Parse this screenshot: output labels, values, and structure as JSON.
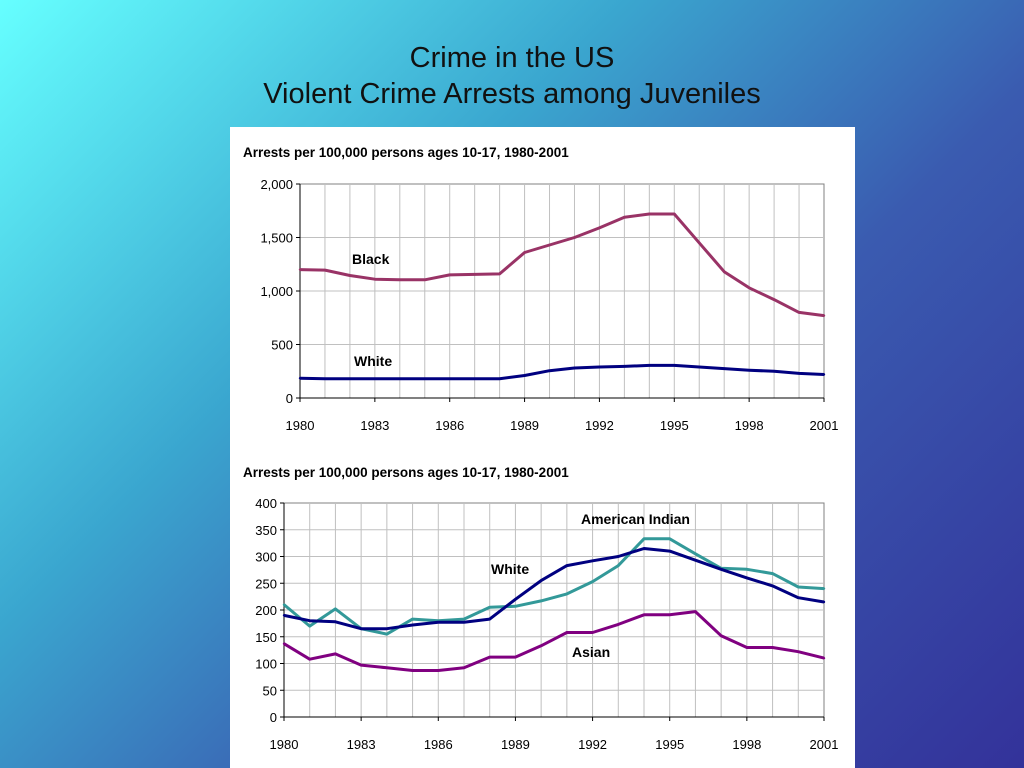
{
  "slide": {
    "title_line1": "Crime in the US",
    "title_line2": "Violent Crime Arrests among Juveniles"
  },
  "chart_data": [
    {
      "type": "line",
      "title": "Arrests per 100,000 persons ages 10-17, 1980-2001",
      "xlabel": "",
      "ylabel": "",
      "xlim": [
        1980,
        2001
      ],
      "ylim": [
        0,
        2000
      ],
      "x_ticks": [
        "1980",
        "1983",
        "1986",
        "1989",
        "1992",
        "1995",
        "1998",
        "2001"
      ],
      "y_ticks": [
        "2,000",
        "1,500",
        "1,000",
        "500",
        "0"
      ],
      "grid": true,
      "legend": "none (series labeled on chart)",
      "x": [
        1980,
        1981,
        1982,
        1983,
        1984,
        1985,
        1986,
        1987,
        1988,
        1989,
        1990,
        1991,
        1992,
        1993,
        1994,
        1995,
        1996,
        1997,
        1998,
        1999,
        2000,
        2001
      ],
      "series": [
        {
          "name": "Black",
          "color": "#993366",
          "values": [
            1200,
            1195,
            1145,
            1110,
            1105,
            1105,
            1150,
            1155,
            1160,
            1360,
            1430,
            1500,
            1590,
            1690,
            1720,
            1720,
            1450,
            1180,
            1030,
            920,
            800,
            770
          ]
        },
        {
          "name": "White",
          "color": "#000080",
          "values": [
            185,
            180,
            180,
            180,
            180,
            180,
            180,
            180,
            180,
            210,
            255,
            280,
            290,
            295,
            305,
            305,
            290,
            275,
            260,
            250,
            230,
            220
          ]
        }
      ]
    },
    {
      "type": "line",
      "title": "Arrests per 100,000 persons ages 10-17, 1980-2001",
      "xlabel": "",
      "ylabel": "",
      "xlim": [
        1980,
        2001
      ],
      "ylim": [
        0,
        400
      ],
      "x_ticks": [
        "1980",
        "1983",
        "1986",
        "1989",
        "1992",
        "1995",
        "1998",
        "2001"
      ],
      "y_ticks": [
        "400",
        "350",
        "300",
        "250",
        "200",
        "150",
        "100",
        "50",
        "0"
      ],
      "grid": true,
      "legend": "none (series labeled on chart)",
      "x": [
        1980,
        1981,
        1982,
        1983,
        1984,
        1985,
        1986,
        1987,
        1988,
        1989,
        1990,
        1991,
        1992,
        1993,
        1994,
        1995,
        1996,
        1997,
        1998,
        1999,
        2000,
        2001
      ],
      "series": [
        {
          "name": "American Indian",
          "color": "#339999",
          "values": [
            210,
            170,
            202,
            165,
            155,
            183,
            180,
            183,
            205,
            207,
            217,
            230,
            253,
            283,
            333,
            333,
            305,
            278,
            276,
            268,
            243,
            240
          ]
        },
        {
          "name": "White",
          "color": "#000080",
          "values": [
            190,
            180,
            178,
            165,
            165,
            172,
            177,
            177,
            183,
            220,
            255,
            283,
            292,
            300,
            315,
            310,
            293,
            276,
            260,
            245,
            223,
            215
          ]
        },
        {
          "name": "Asian",
          "color": "#800080",
          "values": [
            137,
            108,
            118,
            97,
            92,
            87,
            87,
            92,
            112,
            112,
            133,
            158,
            158,
            173,
            191,
            191,
            197,
            152,
            130,
            130,
            122,
            110
          ]
        }
      ]
    }
  ]
}
